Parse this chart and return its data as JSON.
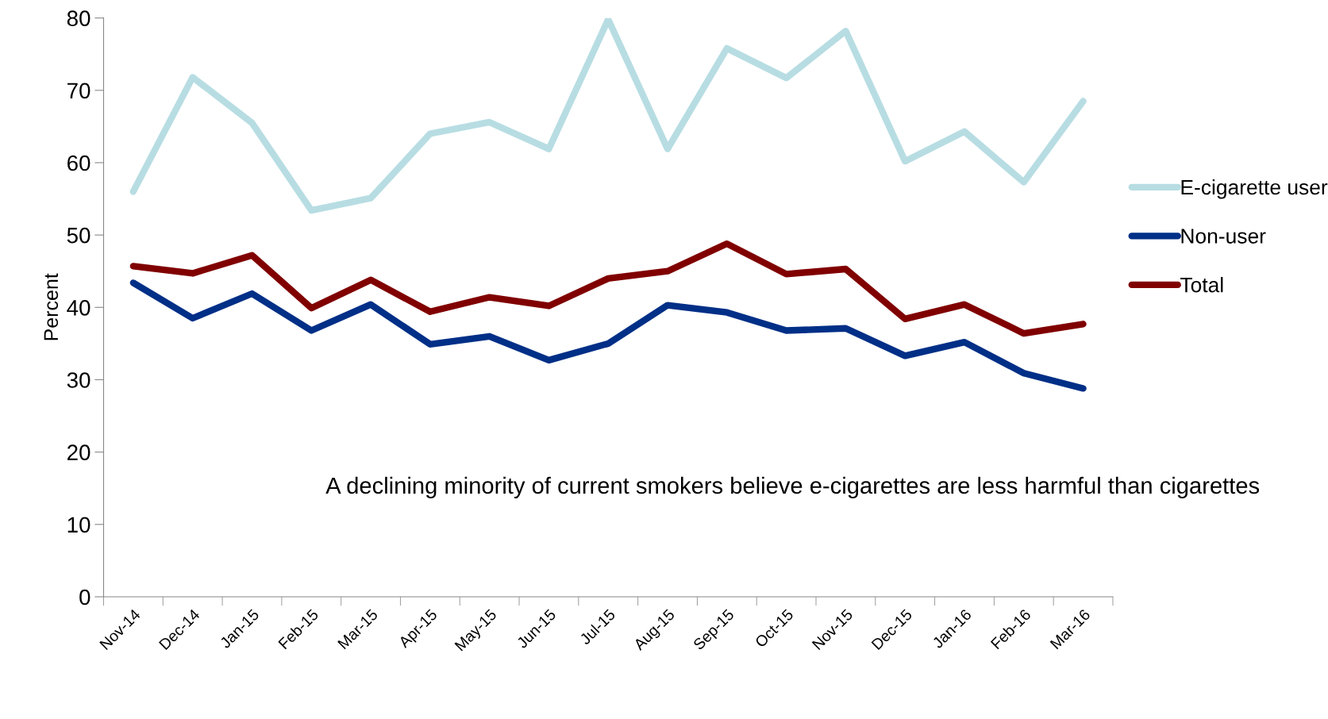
{
  "chart_data": {
    "type": "line",
    "ylabel": "Percent",
    "categories": [
      "Nov-14",
      "Dec-14",
      "Jan-15",
      "Feb-15",
      "Mar-15",
      "Apr-15",
      "May-15",
      "Jun-15",
      "Jul-15",
      "Aug-15",
      "Sep-15",
      "Oct-15",
      "Nov-15",
      "Dec-15",
      "Jan-16",
      "Feb-16",
      "Mar-16"
    ],
    "series": [
      {
        "name": "E-cigarette user",
        "color": "#b7dde3",
        "values": [
          56.0,
          71.8,
          65.5,
          53.4,
          55.1,
          64.0,
          65.6,
          61.9,
          79.8,
          61.9,
          75.8,
          71.7,
          78.2,
          60.2,
          64.3,
          57.3,
          68.5
        ]
      },
      {
        "name": "Non-user",
        "color": "#002f87",
        "values": [
          43.4,
          38.5,
          41.9,
          36.8,
          40.4,
          34.9,
          36.0,
          32.7,
          35.0,
          40.3,
          39.3,
          36.8,
          37.1,
          33.3,
          35.2,
          30.9,
          28.8
        ]
      },
      {
        "name": "Total",
        "color": "#800000",
        "values": [
          45.7,
          44.7,
          47.2,
          39.9,
          43.8,
          39.4,
          41.4,
          40.2,
          44.0,
          45.0,
          48.8,
          44.6,
          45.3,
          38.4,
          40.4,
          36.4,
          37.7
        ]
      }
    ],
    "ylim": [
      0,
      80
    ],
    "yticks": [
      0,
      10,
      20,
      30,
      40,
      50,
      60,
      70,
      80
    ],
    "grid": false,
    "legend": "right",
    "marker": "none",
    "line_style": "solid",
    "annotations": [
      "A declining minority of current smokers believe e-cigarettes are less harmful than cigarettes"
    ]
  }
}
